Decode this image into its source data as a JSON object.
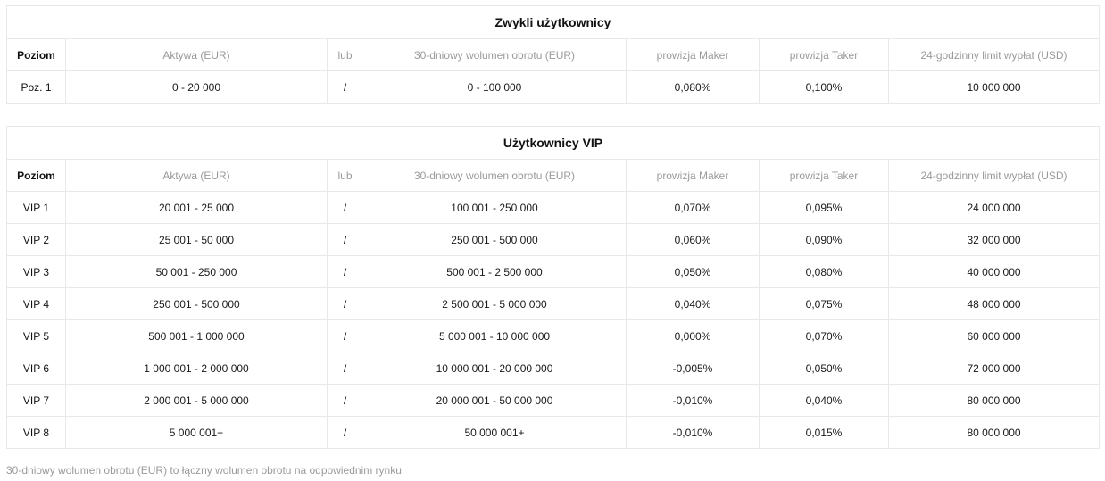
{
  "columns": {
    "level": "Poziom",
    "assets": "Aktywa (EUR)",
    "or": "lub",
    "volume": "30-dniowy wolumen obrotu (EUR)",
    "maker": "prowizja Maker",
    "taker": "prowizja Taker",
    "limit": "24-godzinny limit wypłat (USD)"
  },
  "regular": {
    "title": "Zwykli użytkownicy",
    "rows": [
      {
        "level": "Poz. 1",
        "assets": "0 - 20 000",
        "or": "/",
        "volume": "0 - 100 000",
        "maker": "0,080%",
        "taker": "0,100%",
        "limit": "10 000 000"
      }
    ]
  },
  "vip": {
    "title": "Użytkownicy VIP",
    "rows": [
      {
        "level": "VIP 1",
        "assets": "20 001 - 25 000",
        "or": "/",
        "volume": "100 001 - 250 000",
        "maker": "0,070%",
        "taker": "0,095%",
        "limit": "24 000 000"
      },
      {
        "level": "VIP 2",
        "assets": "25 001 - 50 000",
        "or": "/",
        "volume": "250 001 - 500 000",
        "maker": "0,060%",
        "taker": "0,090%",
        "limit": "32 000 000"
      },
      {
        "level": "VIP 3",
        "assets": "50 001 - 250 000",
        "or": "/",
        "volume": "500 001 - 2 500 000",
        "maker": "0,050%",
        "taker": "0,080%",
        "limit": "40 000 000"
      },
      {
        "level": "VIP 4",
        "assets": "250 001 - 500 000",
        "or": "/",
        "volume": "2 500 001 - 5 000 000",
        "maker": "0,040%",
        "taker": "0,075%",
        "limit": "48 000 000"
      },
      {
        "level": "VIP 5",
        "assets": "500 001 - 1 000 000",
        "or": "/",
        "volume": "5 000 001 - 10 000 000",
        "maker": "0,000%",
        "taker": "0,070%",
        "limit": "60 000 000"
      },
      {
        "level": "VIP 6",
        "assets": "1 000 001 - 2 000 000",
        "or": "/",
        "volume": "10 000 001 - 20 000 000",
        "maker": "-0,005%",
        "taker": "0,050%",
        "limit": "72 000 000"
      },
      {
        "level": "VIP 7",
        "assets": "2 000 001 - 5 000 000",
        "or": "/",
        "volume": "20 000 001 - 50 000 000",
        "maker": "-0,010%",
        "taker": "0,040%",
        "limit": "80 000 000"
      },
      {
        "level": "VIP 8",
        "assets": "5 000 001+",
        "or": "/",
        "volume": "50 000 001+",
        "maker": "-0,010%",
        "taker": "0,015%",
        "limit": "80 000 000"
      }
    ]
  },
  "footnote": "30-dniowy wolumen obrotu (EUR) to łączny wolumen obrotu na odpowiednim rynku"
}
